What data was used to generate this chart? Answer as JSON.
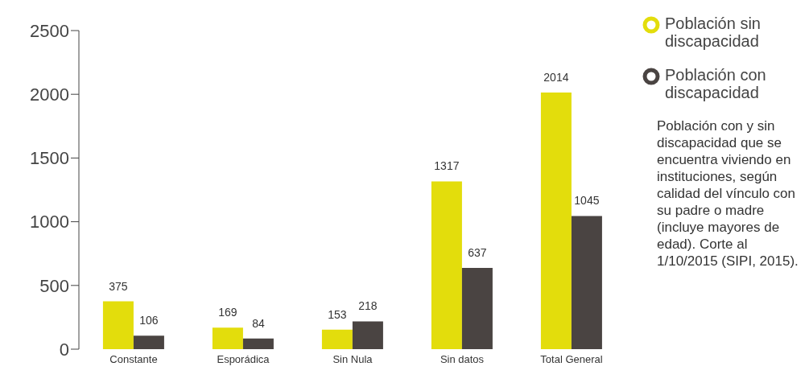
{
  "chart_data": {
    "type": "bar",
    "categories": [
      "Constante",
      "Esporádica",
      "Sin Nula",
      "Sin datos",
      "Total General"
    ],
    "series": [
      {
        "name": "Población sin discapacidad",
        "color": "#e3dd0c",
        "values": [
          375,
          169,
          153,
          1317,
          2014
        ]
      },
      {
        "name": "Población con discapacidad",
        "color": "#4a4442",
        "values": [
          106,
          84,
          218,
          637,
          1045
        ]
      }
    ],
    "ylim": [
      0,
      2500
    ],
    "yticks": [
      0,
      500,
      1000,
      1500,
      2000,
      2500
    ],
    "grid": false,
    "legend": "top right",
    "data_labels": true,
    "annotations": [
      "Población con y sin discapacidad que se encuentra viviendo en instituciones, según calidad del vínculo con su padre o madre (incluye mayores de edad). Corte al 1/10/2015 (SIPI, 2015)."
    ]
  }
}
